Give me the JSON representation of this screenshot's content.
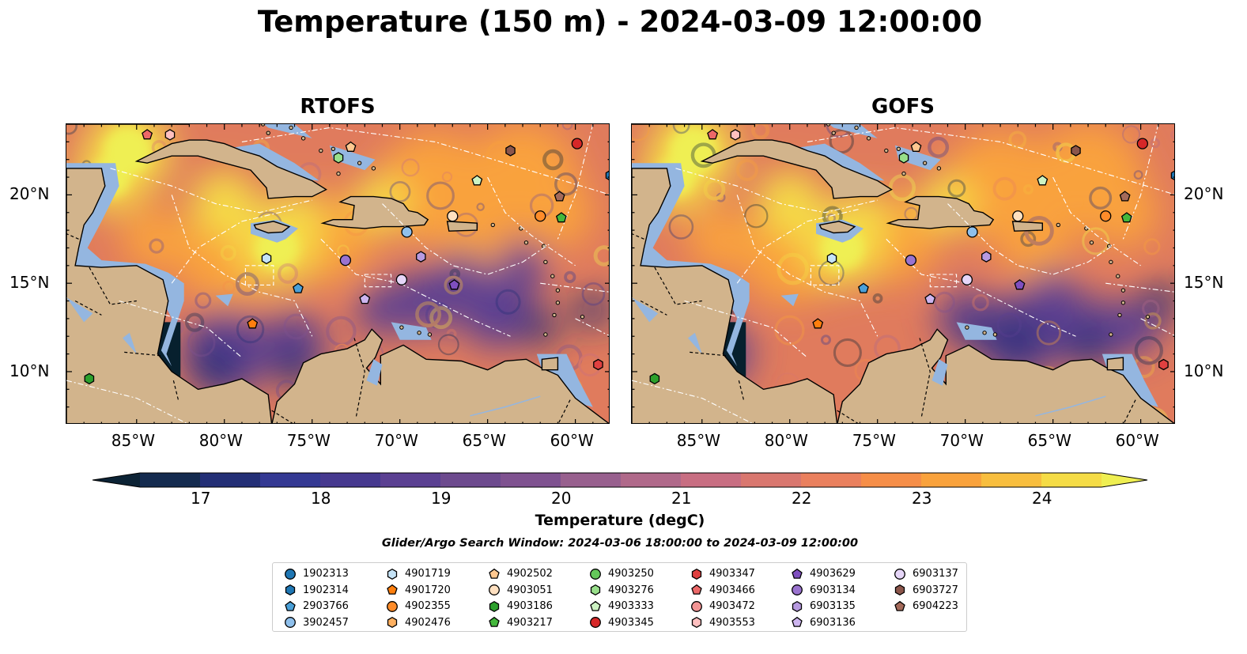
{
  "title": "Temperature (150 m) - 2024-03-09 12:00:00",
  "panels": [
    {
      "title": "RTOFS",
      "warm_field": "rtofs"
    },
    {
      "title": "GOFS",
      "warm_field": "gofs"
    }
  ],
  "map": {
    "lon_range": [
      -89,
      -58
    ],
    "lat_range": [
      7,
      24
    ],
    "x_ticks": [
      "85°W",
      "80°W",
      "75°W",
      "70°W",
      "65°W",
      "60°W"
    ],
    "y_ticks": [
      "20°N",
      "15°N",
      "10°N"
    ],
    "land_color": "#d2b48c",
    "shelf_color": "#94b6e0",
    "deep_color": "#07202e"
  },
  "colorbar": {
    "label": "Temperature (degC)",
    "ticks": [
      "17",
      "18",
      "19",
      "20",
      "21",
      "22",
      "23",
      "24"
    ],
    "range": [
      16.5,
      24.5
    ],
    "colors": [
      "#0c2335",
      "#142b4f",
      "#232f76",
      "#343993",
      "#46398f",
      "#5b4092",
      "#6d4a8e",
      "#7f5290",
      "#98608e",
      "#b0698a",
      "#c86e82",
      "#d9776f",
      "#ea805e",
      "#f68e48",
      "#f9a23c",
      "#f8be3e",
      "#f5dc46",
      "#efef52"
    ]
  },
  "search_window": "Glider/Argo Search Window: 2024-03-06 18:00:00 to 2024-03-09 12:00:00",
  "legend": [
    {
      "id": "1902313",
      "color": "#1f77b4",
      "shape": "circle"
    },
    {
      "id": "1902314",
      "color": "#1f77b4",
      "shape": "hexagon"
    },
    {
      "id": "2903766",
      "color": "#4aa0d8",
      "shape": "pentagon"
    },
    {
      "id": "3902457",
      "color": "#8fc0ec",
      "shape": "circle"
    },
    {
      "id": "4901719",
      "color": "#c5e3f6",
      "shape": "hexagon"
    },
    {
      "id": "4901720",
      "color": "#ff7f0e",
      "shape": "pentagon"
    },
    {
      "id": "4902355",
      "color": "#ff8c2a",
      "shape": "circle"
    },
    {
      "id": "4902476",
      "color": "#ffb060",
      "shape": "hexagon"
    },
    {
      "id": "4902502",
      "color": "#ffc890",
      "shape": "pentagon"
    },
    {
      "id": "4903051",
      "color": "#ffe0c0",
      "shape": "circle"
    },
    {
      "id": "4903186",
      "color": "#2ca02c",
      "shape": "hexagon"
    },
    {
      "id": "4903217",
      "color": "#44b83c",
      "shape": "pentagon"
    },
    {
      "id": "4903250",
      "color": "#64c85a",
      "shape": "circle"
    },
    {
      "id": "4903276",
      "color": "#98df8a",
      "shape": "hexagon"
    },
    {
      "id": "4903333",
      "color": "#cdf3c3",
      "shape": "pentagon"
    },
    {
      "id": "4903345",
      "color": "#d62728",
      "shape": "circle"
    },
    {
      "id": "4903347",
      "color": "#e04040",
      "shape": "hexagon"
    },
    {
      "id": "4903466",
      "color": "#ec6868",
      "shape": "pentagon"
    },
    {
      "id": "4903472",
      "color": "#f29494",
      "shape": "circle"
    },
    {
      "id": "4903553",
      "color": "#ffc0c0",
      "shape": "hexagon"
    },
    {
      "id": "4903629",
      "color": "#7f4fbf",
      "shape": "pentagon"
    },
    {
      "id": "6903134",
      "color": "#9a73cf",
      "shape": "circle"
    },
    {
      "id": "6903135",
      "color": "#b79ae0",
      "shape": "hexagon"
    },
    {
      "id": "6903136",
      "color": "#cdb5ef",
      "shape": "pentagon"
    },
    {
      "id": "6903137",
      "color": "#e6d6f8",
      "shape": "circle"
    },
    {
      "id": "6903727",
      "color": "#8c564b",
      "shape": "hexagon"
    },
    {
      "id": "6904223",
      "color": "#a46a5a",
      "shape": "pentagon"
    }
  ],
  "markers": [
    {
      "id": "4903466",
      "lon": -84.4,
      "lat": 23.4
    },
    {
      "id": "4903553",
      "lon": -83.1,
      "lat": 23.4
    },
    {
      "id": "4902502",
      "lon": -72.8,
      "lat": 22.7
    },
    {
      "id": "4903276",
      "lon": -73.5,
      "lat": 22.1
    },
    {
      "id": "6903727",
      "lon": -63.7,
      "lat": 22.5
    },
    {
      "id": "4903345",
      "lon": -59.9,
      "lat": 22.9
    },
    {
      "id": "1902314",
      "lon": -58.0,
      "lat": 21.1
    },
    {
      "id": "4903333",
      "lon": -65.6,
      "lat": 20.8
    },
    {
      "id": "6904223",
      "lon": -60.9,
      "lat": 19.9
    },
    {
      "id": "4903051",
      "lon": -67.0,
      "lat": 18.8
    },
    {
      "id": "4902355",
      "lon": -62.0,
      "lat": 18.8
    },
    {
      "id": "4903217",
      "lon": -60.8,
      "lat": 18.7
    },
    {
      "id": "3902457",
      "lon": -69.6,
      "lat": 17.9
    },
    {
      "id": "6903135",
      "lon": -68.8,
      "lat": 16.5
    },
    {
      "id": "4901719",
      "lon": -77.6,
      "lat": 16.4
    },
    {
      "id": "6903134",
      "lon": -73.1,
      "lat": 16.3
    },
    {
      "id": "6903137",
      "lon": -69.9,
      "lat": 15.2
    },
    {
      "id": "2903766",
      "lon": -75.8,
      "lat": 14.7
    },
    {
      "id": "4903629",
      "lon": -66.9,
      "lat": 14.9
    },
    {
      "id": "6903136",
      "lon": -72.0,
      "lat": 14.1
    },
    {
      "id": "4901720",
      "lon": -78.4,
      "lat": 12.7
    },
    {
      "id": "4903347",
      "lon": -58.7,
      "lat": 10.4
    },
    {
      "id": "4903186",
      "lon": -87.7,
      "lat": 9.6
    }
  ]
}
